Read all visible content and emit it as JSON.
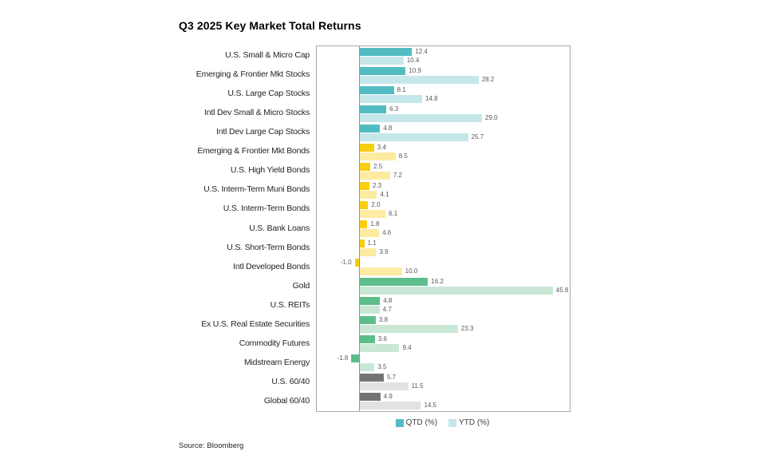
{
  "title": "Q3 2025 Key Market Total Returns",
  "source": "Source: Bloomberg",
  "legend": [
    {
      "label": "QTD (%)",
      "color": "#53bcc3"
    },
    {
      "label": "YTD (%)",
      "color": "#c6e7ea"
    }
  ],
  "chart_data": {
    "type": "bar",
    "orientation": "horizontal",
    "title": "Q3 2025 Key Market Total Returns",
    "xlim": [
      -10,
      50
    ],
    "grid": false,
    "legend_position": "bottom",
    "value_label_decimals": 1,
    "categories": [
      "U.S. Small & Micro Cap",
      "Emerging & Frontier Mkt Stocks",
      "U.S. Large Cap Stocks",
      "Intl Dev Small & Micro Stocks",
      "Intl Dev Large Cap Stocks",
      "Emerging & Frontier Mkt Bonds",
      "U.S. High Yield Bonds",
      "U.S. Interm-Term Muni Bonds",
      "U.S. Interm-Term Bonds",
      "U.S. Bank Loans",
      "U.S. Short-Term Bonds",
      "Intl Developed Bonds",
      "Gold",
      "U.S. REITs",
      "Ex U.S. Real Estate Securities",
      "Commodity Futures",
      "Midstream Energy",
      "U.S. 60/40",
      "Global 60/40"
    ],
    "series": [
      {
        "name": "QTD (%)",
        "values": [
          12.4,
          10.9,
          8.1,
          6.3,
          4.8,
          3.4,
          2.5,
          2.3,
          2.0,
          1.8,
          1.1,
          -1.0,
          16.2,
          4.8,
          3.8,
          3.6,
          -1.8,
          5.7,
          4.9
        ]
      },
      {
        "name": "YTD (%)",
        "values": [
          10.4,
          28.2,
          14.8,
          29.0,
          25.7,
          8.5,
          7.2,
          4.1,
          6.1,
          4.6,
          3.9,
          10.0,
          45.8,
          4.7,
          23.3,
          9.4,
          3.5,
          11.5,
          14.5
        ]
      }
    ],
    "category_groups": [
      "stocks",
      "stocks",
      "stocks",
      "stocks",
      "stocks",
      "bonds",
      "bonds",
      "bonds",
      "bonds",
      "bonds",
      "bonds",
      "bonds",
      "real-assets",
      "real-assets",
      "real-assets",
      "real-assets",
      "real-assets",
      "blended",
      "blended"
    ],
    "group_colors": {
      "stocks": {
        "qtd": "#53bcc3",
        "ytd": "#c6e7ea"
      },
      "bonds": {
        "qtd": "#f8ce0e",
        "ytd": "#fdeba1"
      },
      "real-assets": {
        "qtd": "#5dbd8b",
        "ytd": "#c8e8d5"
      },
      "blended": {
        "qtd": "#737476",
        "ytd": "#e2e2e2"
      }
    },
    "axis_color": "#939598",
    "border_color": "#a7a9ac",
    "value_label_color": "#58595b"
  }
}
